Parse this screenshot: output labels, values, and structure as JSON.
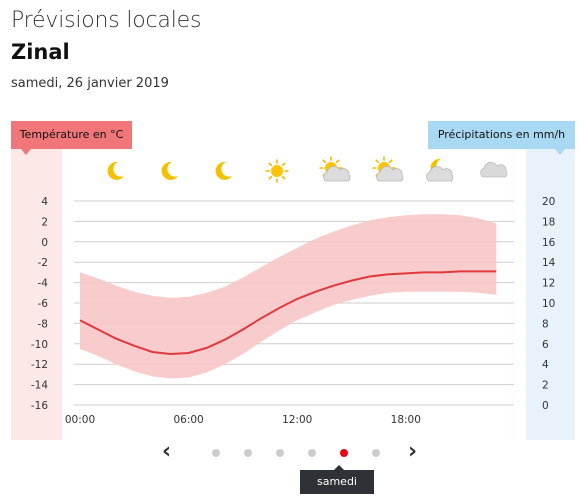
{
  "header": {
    "title": "Prévisions locales",
    "place": "Zinal",
    "date": "samedi, 26 janvier 2019"
  },
  "labels": {
    "temperature": "Température en °C",
    "precipitation": "Précipitations en mm/h"
  },
  "icons": [
    "moon-icon",
    "moon-icon",
    "moon-icon",
    "sun-icon",
    "sun-cloud-icon",
    "sun-cloud-icon",
    "moon-cloud-icon",
    "cloud-icon"
  ],
  "pager": {
    "prev_icon": "chevron-left-icon",
    "next_icon": "chevron-right-icon",
    "dot_count": 6,
    "active_index": 4,
    "tooltip": "samedi"
  },
  "colors": {
    "temperature_line": "#e0393e",
    "temperature_band": "#f7c5c6",
    "active_dot": "#e30613"
  },
  "chart_data": {
    "type": "line",
    "x_ticks": [
      "00:00",
      "06:00",
      "12:00",
      "18:00"
    ],
    "x": [
      0,
      1,
      2,
      3,
      4,
      5,
      6,
      7,
      8,
      9,
      10,
      11,
      12,
      13,
      14,
      15,
      16,
      17,
      18,
      19,
      20,
      21,
      22,
      23
    ],
    "series": [
      {
        "values": [
          -7.7,
          -8.6,
          -9.5,
          -10.2,
          -10.8,
          -11.0,
          -10.9,
          -10.4,
          -9.6,
          -8.6,
          -7.5,
          -6.5,
          -5.6,
          -4.9,
          -4.3,
          -3.8,
          -3.4,
          -3.2,
          -3.1,
          -3.0,
          -3.0,
          -2.9,
          -2.9,
          -2.9
        ]
      }
    ],
    "band": {
      "upper": [
        -3.0,
        -3.6,
        -4.3,
        -4.9,
        -5.3,
        -5.5,
        -5.4,
        -5.0,
        -4.4,
        -3.5,
        -2.5,
        -1.5,
        -0.6,
        0.3,
        1.0,
        1.6,
        2.1,
        2.4,
        2.6,
        2.7,
        2.7,
        2.6,
        2.3,
        1.8
      ],
      "lower": [
        -10.5,
        -11.2,
        -12.0,
        -12.7,
        -13.2,
        -13.4,
        -13.3,
        -12.8,
        -12.0,
        -11.0,
        -9.8,
        -8.7,
        -7.7,
        -6.9,
        -6.2,
        -5.7,
        -5.3,
        -5.0,
        -4.9,
        -4.9,
        -4.9,
        -4.9,
        -5.0,
        -5.2
      ]
    },
    "y_left": {
      "label": "Température en °C",
      "ticks": [
        4,
        2,
        0,
        -2,
        -4,
        -6,
        -8,
        -10,
        -12,
        -14,
        -16
      ],
      "range": [
        -16,
        4
      ]
    },
    "y_right": {
      "label": "Précipitations en mm/h",
      "ticks": [
        20,
        18,
        16,
        14,
        12,
        10,
        8,
        6,
        4,
        2,
        0
      ],
      "range": [
        0,
        20
      ]
    },
    "grid": true
  }
}
